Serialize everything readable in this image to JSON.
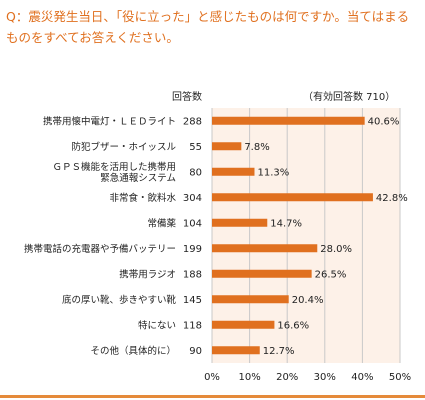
{
  "question": "Q：震災発生当日、「役に立った」と感じたものは何ですか。当てはまるものをすべてお答えください。",
  "header": {
    "count_label": "回答数",
    "valid_label": "（有効回答数 710）"
  },
  "colors": {
    "bar": "#e0701f",
    "plot_bg": "#fdf1e8",
    "grid": "#c9c9c9",
    "question_text": "#e0701f"
  },
  "chart_data": {
    "type": "bar",
    "orientation": "horizontal",
    "categories": [
      [
        "携帯用懐中電灯・ＬＥＤライト"
      ],
      [
        "防犯ブザー・ホイッスル"
      ],
      [
        "ＧＰＳ機能を活用した携帯用",
        "緊急通報システム"
      ],
      [
        "非常食・飲料水"
      ],
      [
        "常備薬"
      ],
      [
        "携帯電話の充電器や予備バッテリー"
      ],
      [
        "携帯用ラジオ"
      ],
      [
        "底の厚い靴、歩きやすい靴"
      ],
      [
        "特にない"
      ],
      [
        "その他（具体的に）"
      ]
    ],
    "counts": [
      288,
      55,
      80,
      304,
      104,
      199,
      188,
      145,
      118,
      90
    ],
    "values": [
      40.6,
      7.8,
      11.3,
      42.8,
      14.7,
      28.0,
      26.5,
      20.4,
      16.6,
      12.7
    ],
    "value_labels": [
      "40.6%",
      "7.8%",
      "11.3%",
      "42.8%",
      "14.7%",
      "28.0%",
      "26.5%",
      "20.4%",
      "16.6%",
      "12.7%"
    ],
    "xlim": [
      0,
      50
    ],
    "ticks": [
      0,
      10,
      20,
      30,
      40,
      50
    ],
    "tick_labels": [
      "0%",
      "10%",
      "20%",
      "30%",
      "40%",
      "50%"
    ],
    "grid": true
  }
}
